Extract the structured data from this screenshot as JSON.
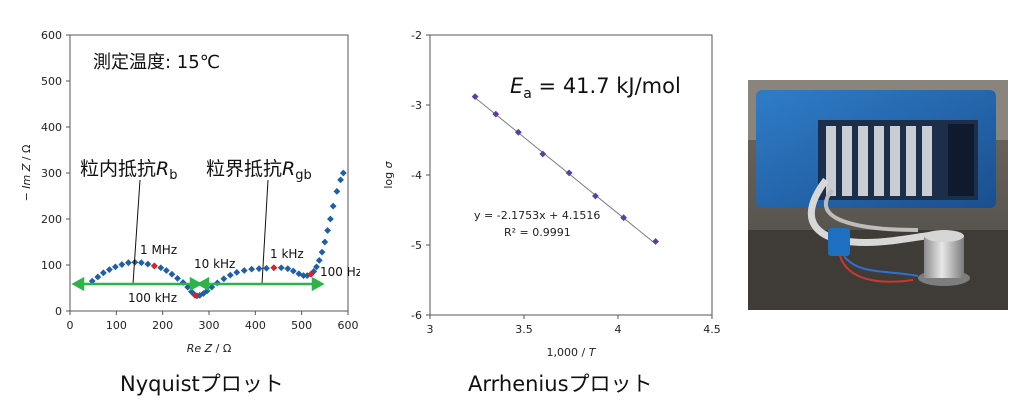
{
  "charts": {
    "nyquist": {
      "caption": "Nyquistプロット",
      "temp_label": "測定温度: 15℃",
      "region_label_1": "粒内抵抗",
      "region_label_1_sym": "R",
      "region_label_1_sub": "b",
      "region_label_2": "粒界抵抗",
      "region_label_2_sym": "R",
      "region_label_2_sub": "gb",
      "freq_labels": [
        "1 MHz",
        "100 kHz",
        "10 kHz",
        "1 kHz",
        "100 Hz"
      ],
      "xlabel_italic": "Re Z",
      "xlabel_unit": " / Ω",
      "ylabel_italic": "− Im Z",
      "ylabel_unit": " / Ω",
      "xticks": [
        "0",
        "100",
        "200",
        "300",
        "400",
        "500",
        "600"
      ],
      "yticks": [
        "0",
        "100",
        "200",
        "300",
        "400",
        "500",
        "600"
      ],
      "marker_color": "#1f5fa8",
      "highlight_color": "#e02020",
      "arrow_color": "#2db34a"
    },
    "arrhenius": {
      "caption": "Arrheniusプロット",
      "ea_label_sym": "E",
      "ea_label_sub": "a",
      "ea_label_val": " = 41.7 kJ/mol",
      "fit_eq": "y = -2.1753x + 4.1516",
      "fit_r2": "R² = 0.9991",
      "xlabel": "1,000 / ",
      "xlabel_italic": "T",
      "ylabel": "log ",
      "ylabel_italic": "σ",
      "xticks": [
        "3",
        "3.5",
        "4",
        "4.5"
      ],
      "yticks": [
        "-2",
        "-3",
        "-4",
        "-5",
        "-6"
      ],
      "marker_color": "#5a3fa0",
      "line_color": "#808080"
    }
  },
  "photo": {
    "label": ""
  },
  "chart_data": [
    {
      "type": "scatter",
      "xlim": [
        0,
        600
      ],
      "ylim": [
        0,
        600
      ],
      "series": [
        {
          "x": [
            48,
            60,
            72,
            85,
            98,
            112,
            126,
            140,
            154,
            168,
            182,
            196,
            208,
            220,
            232,
            244,
            254,
            262,
            268,
            274,
            280,
            288,
            296,
            306,
            318,
            332,
            346,
            360,
            376,
            392,
            408,
            424,
            440,
            456,
            470,
            482,
            494,
            504,
            512,
            520,
            526,
            532,
            538,
            544,
            550,
            556,
            562,
            568,
            576,
            584,
            590
          ],
          "y": [
            65,
            74,
            83,
            90,
            96,
            101,
            105,
            106,
            105,
            102,
            98,
            94,
            88,
            80,
            71,
            62,
            52,
            42,
            36,
            33,
            34,
            38,
            44,
            52,
            61,
            70,
            78,
            84,
            88,
            91,
            92,
            93,
            94,
            94,
            92,
            87,
            81,
            77,
            77,
            80,
            86,
            96,
            110,
            128,
            150,
            175,
            200,
            228,
            260,
            285,
            300
          ]
        }
      ],
      "highlight_points": {
        "x": [
          182,
          270,
          440,
          520
        ],
        "y": [
          98,
          34,
          94,
          80
        ]
      }
    },
    {
      "type": "scatter",
      "xlim": [
        3,
        4.5
      ],
      "ylim": [
        -6,
        -2
      ],
      "x": [
        3.24,
        3.35,
        3.47,
        3.6,
        3.74,
        3.88,
        4.03,
        4.2
      ],
      "y": [
        -2.88,
        -3.13,
        -3.39,
        -3.7,
        -3.97,
        -4.3,
        -4.61,
        -4.95
      ],
      "trendline": {
        "slope": -2.1753,
        "intercept": 4.1516
      }
    }
  ]
}
